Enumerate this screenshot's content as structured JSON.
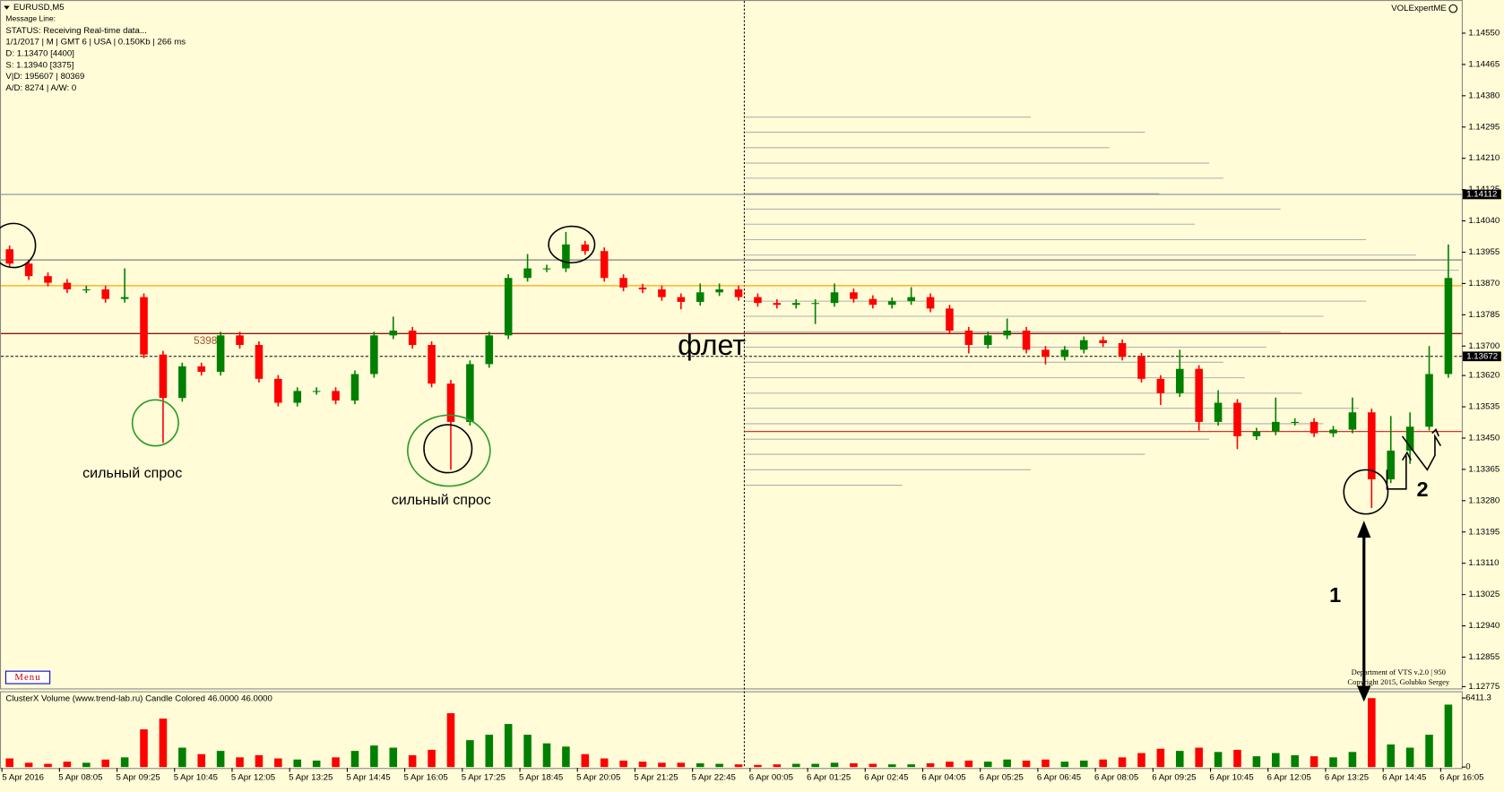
{
  "chart_data": {
    "type": "candlestick",
    "title": "EURUSD,M5",
    "info": [
      "Message Line:",
      "STATUS:  Receiving Real-time data...",
      "1/1/2017  |  M  | GMT 6 | USA | 0.150Kb | 266 ms",
      "D: 1.13470  [4400]",
      "S: 1.13940  [3375]",
      "V|D: 195607 | 80369",
      "A/D: 8274 | A/W: 0"
    ],
    "indicator": "VOLExpertME",
    "menu": "Menu",
    "credits": [
      "Department of VTS  v.2.0 | 950",
      "Copyright 2015, Golubko Sergey"
    ],
    "volume_title": "ClusterX Volume (www.trend-lab.ru) Candle Colored 46.0000 46.0000",
    "annotations": {
      "demand": [
        "сильный спрос",
        "сильный спрос"
      ],
      "flat": "флет",
      "one": "1",
      "two": "2",
      "level": "5398"
    },
    "up_color": "#008000",
    "down_color": "#ff0000",
    "open": [
      1.13963,
      1.13924,
      1.1389,
      1.13872,
      1.13854,
      1.13854,
      1.13828,
      1.13833,
      1.13677,
      1.13559,
      1.13645,
      1.1363,
      1.13729,
      1.13703,
      1.13611,
      1.13546,
      1.13578,
      1.13578,
      1.13552,
      1.13624,
      1.13729,
      1.13742,
      1.13703,
      1.13598,
      1.13494,
      1.13651,
      1.13729,
      1.13885,
      1.13911,
      1.13911,
      1.13976,
      1.13958,
      1.13885,
      1.13859,
      1.13854,
      1.13833,
      1.1382,
      1.13846,
      1.13854,
      1.13833,
      1.13817,
      1.13812,
      1.13817,
      1.13817,
      1.13846,
      1.13828,
      1.13812,
      1.13822,
      1.13833,
      1.13802,
      1.13742,
      1.13703,
      1.13729,
      1.13742,
      1.1369,
      1.13671,
      1.1369,
      1.13716,
      1.13708,
      1.13671,
      1.13611,
      1.13572,
      1.13638,
      1.13494,
      1.13546,
      1.13455,
      1.13468,
      1.13494,
      1.13494,
      1.13463,
      1.13473,
      1.1352,
      1.13338,
      1.13416,
      1.13481,
      1.13624
    ],
    "high": [
      1.13973,
      1.13934,
      1.139,
      1.13882,
      1.13864,
      1.13864,
      1.13911,
      1.13843,
      1.13687,
      1.13655,
      1.13655,
      1.13739,
      1.13739,
      1.13713,
      1.13621,
      1.13588,
      1.13588,
      1.13588,
      1.13634,
      1.13739,
      1.1378,
      1.13752,
      1.13713,
      1.13608,
      1.13661,
      1.13739,
      1.13895,
      1.1395,
      1.13921,
      1.1401,
      1.13986,
      1.13968,
      1.13895,
      1.13869,
      1.13864,
      1.13843,
      1.1387,
      1.1387,
      1.13864,
      1.13843,
      1.13827,
      1.13827,
      1.13827,
      1.1387,
      1.13856,
      1.13838,
      1.13832,
      1.1386,
      1.13843,
      1.13812,
      1.13752,
      1.13739,
      1.13775,
      1.13752,
      1.137,
      1.137,
      1.13726,
      1.13726,
      1.13718,
      1.13681,
      1.13621,
      1.1369,
      1.13648,
      1.1358,
      1.13556,
      1.13478,
      1.1356,
      1.13504,
      1.13504,
      1.13483,
      1.1356,
      1.1353,
      1.1351,
      1.1352,
      1.137,
      1.13976
    ],
    "low": [
      1.13914,
      1.1388,
      1.13862,
      1.13844,
      1.13844,
      1.13818,
      1.13818,
      1.13667,
      1.13437,
      1.13549,
      1.1362,
      1.1362,
      1.13693,
      1.13601,
      1.13536,
      1.13536,
      1.13568,
      1.13542,
      1.13542,
      1.13614,
      1.13719,
      1.13693,
      1.13588,
      1.13364,
      1.13484,
      1.13641,
      1.13719,
      1.13875,
      1.13901,
      1.13901,
      1.13948,
      1.13875,
      1.13849,
      1.13844,
      1.13823,
      1.138,
      1.1381,
      1.13836,
      1.13823,
      1.13807,
      1.13802,
      1.13802,
      1.1376,
      1.13807,
      1.13818,
      1.13802,
      1.13802,
      1.13812,
      1.13792,
      1.13732,
      1.1368,
      1.13693,
      1.13719,
      1.1368,
      1.1365,
      1.13661,
      1.1368,
      1.13698,
      1.13661,
      1.13601,
      1.1354,
      1.13562,
      1.1347,
      1.13484,
      1.1342,
      1.13445,
      1.13458,
      1.13484,
      1.13453,
      1.13453,
      1.13463,
      1.1326,
      1.13328,
      1.1338,
      1.13471,
      1.13614
    ],
    "close": [
      1.13924,
      1.1389,
      1.13872,
      1.13854,
      1.13854,
      1.13828,
      1.13833,
      1.13677,
      1.13559,
      1.13645,
      1.1363,
      1.13729,
      1.13703,
      1.13611,
      1.13546,
      1.13578,
      1.13578,
      1.13552,
      1.13624,
      1.13729,
      1.13742,
      1.13703,
      1.13598,
      1.13494,
      1.13651,
      1.13729,
      1.13885,
      1.13911,
      1.13911,
      1.13976,
      1.13958,
      1.13885,
      1.13859,
      1.13854,
      1.13833,
      1.1382,
      1.13846,
      1.13854,
      1.13833,
      1.13817,
      1.13812,
      1.13817,
      1.13817,
      1.13846,
      1.13828,
      1.13812,
      1.13822,
      1.13833,
      1.13802,
      1.13742,
      1.13703,
      1.13729,
      1.13742,
      1.1369,
      1.13671,
      1.1369,
      1.13716,
      1.13708,
      1.13671,
      1.13611,
      1.13572,
      1.13638,
      1.13494,
      1.13546,
      1.13455,
      1.13468,
      1.13494,
      1.13494,
      1.13463,
      1.13473,
      1.1352,
      1.13338,
      1.13416,
      1.13481,
      1.13624,
      1.13885
    ],
    "volume": [
      800,
      400,
      300,
      500,
      400,
      700,
      900,
      3500,
      4500,
      1800,
      1200,
      1500,
      900,
      1100,
      800,
      700,
      600,
      900,
      1500,
      2000,
      1800,
      1100,
      1600,
      5000,
      2500,
      3000,
      4000,
      3000,
      2200,
      1900,
      1200,
      800,
      600,
      500,
      400,
      400,
      350,
      300,
      250,
      200,
      250,
      300,
      300,
      400,
      350,
      300,
      250,
      250,
      350,
      500,
      600,
      500,
      700,
      600,
      700,
      500,
      600,
      700,
      900,
      1300,
      1700,
      1500,
      1800,
      1400,
      1600,
      1000,
      1300,
      1100,
      1000,
      900,
      1400,
      6400,
      2100,
      1800,
      3000,
      5800
    ],
    "ylim": [
      1.1277,
      1.1464
    ],
    "yticks": [
      {
        "value": 1.1455,
        "label": "1.14550"
      },
      1.14465,
      {
        "value": 1.1438,
        "label": "1.14380"
      },
      1.14295,
      {
        "value": 1.1421,
        "label": "1.14210"
      },
      1.14125,
      {
        "value": 1.1404,
        "label": "1.14040"
      },
      1.13955,
      {
        "value": 1.1387,
        "label": "1.13870"
      },
      1.13785,
      {
        "value": 1.137,
        "label": "1.13700"
      },
      {
        "value": 1.1362,
        "label": "1.13620"
      },
      1.13535,
      {
        "value": 1.1345,
        "label": "1.13450"
      },
      1.13365,
      {
        "value": 1.1328,
        "label": "1.13280"
      },
      1.13195,
      {
        "value": 1.1311,
        "label": "1.13110"
      },
      1.13025,
      {
        "value": 1.1294,
        "label": "1.12940"
      },
      1.12855,
      1.12775
    ],
    "volume_ylim": [
      0,
      6411.3
    ],
    "volume_yticks": [
      0,
      6411.3
    ],
    "marked_lines": {
      "values": [
        1.14112,
        1.13672
      ],
      "colors": [
        "#6f8296",
        "#000000"
      ]
    },
    "plain_lines": {
      "values": [
        1.13934,
        1.13864,
        1.13734,
        1.13468
      ],
      "colors": [
        "#808080",
        "#ffa500",
        "#8b1a1a",
        "#e03030"
      ]
    },
    "profile": {
      "prices": [
        1.14322,
        1.14281,
        1.14239,
        1.14197,
        1.14156,
        1.14114,
        1.14072,
        1.14031,
        1.13989,
        1.13947,
        1.13906,
        1.13864,
        1.13822,
        1.13781,
        1.13739,
        1.13697,
        1.13656,
        1.13614,
        1.13572,
        1.13531,
        1.13489,
        1.13447,
        1.13406,
        1.13364,
        1.13322
      ],
      "values": [
        40,
        56,
        51,
        65,
        67,
        58,
        75,
        63,
        87,
        94,
        100,
        97,
        87,
        81,
        75,
        73,
        67,
        70,
        78,
        86,
        81,
        65,
        56,
        40,
        22
      ]
    },
    "time_labels": [
      "5 Apr 2016",
      "5 Apr 08:05",
      "5 Apr 09:25",
      "5 Apr 10:45",
      "5 Apr 12:05",
      "5 Apr 13:25",
      "5 Apr 14:45",
      "5 Apr 16:05",
      "5 Apr 17:25",
      "5 Apr 18:45",
      "5 Apr 20:05",
      "5 Apr 21:25",
      "5 Apr 22:45",
      "6 Apr 00:05",
      "6 Apr 01:25",
      "6 Apr 02:45",
      "6 Apr 04:05",
      "6 Apr 05:25",
      "6 Apr 06:45",
      "6 Apr 08:05",
      "6 Apr 09:25",
      "6 Apr 10:45",
      "6 Apr 12:05",
      "6 Apr 13:25",
      "6 Apr 14:45",
      "6 Apr 16:05"
    ]
  }
}
